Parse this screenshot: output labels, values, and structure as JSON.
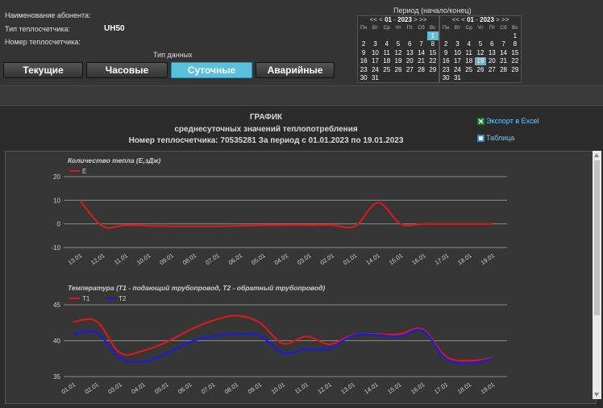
{
  "header": {
    "subscriber_label": "Наименование абонента:",
    "meter_type_label": "Тип теплосчетчика:",
    "meter_type_value": "UH50",
    "meter_number_label": "Номер теплосчетчика:",
    "data_type_label": "Тип данных"
  },
  "tabs": [
    {
      "label": "Текущие"
    },
    {
      "label": "Часовые"
    },
    {
      "label": "Суточные",
      "active": true
    },
    {
      "label": "Аварийные"
    }
  ],
  "period": {
    "label": "Период (начало/конец)",
    "calendars": [
      {
        "nav_prev": "<< <",
        "month": "01",
        "sep": "-",
        "year": "2023",
        "nav_next": "> >>",
        "selected_day": "1"
      },
      {
        "nav_prev": "<< <",
        "month": "01",
        "sep": "-",
        "year": "2023",
        "nav_next": "> >>",
        "selected_day": "19"
      }
    ],
    "weekdays": [
      "Пн",
      "Вт",
      "Ср",
      "Чт",
      "Пт",
      "Сб",
      "Вс"
    ],
    "weeks": [
      [
        "",
        "",
        "",
        "",
        "",
        "",
        "1"
      ],
      [
        "2",
        "3",
        "4",
        "5",
        "6",
        "7",
        "8"
      ],
      [
        "9",
        "10",
        "11",
        "12",
        "13",
        "14",
        "15"
      ],
      [
        "16",
        "17",
        "18",
        "19",
        "20",
        "21",
        "22"
      ],
      [
        "23",
        "24",
        "25",
        "26",
        "27",
        "28",
        "29"
      ],
      [
        "30",
        "31",
        "",
        "",
        "",
        "",
        ""
      ]
    ]
  },
  "graph": {
    "title1": "ГРАФИК",
    "title2": "среднесуточных значений теплопотребления",
    "title3": "Номер теплосчетчика: 70535281 За период с 01.01.2023 по 19.01.2023",
    "export_label": "Экспорт в Excel",
    "table_label": "Таблица"
  },
  "colors": {
    "red": "#d41b1b",
    "blue": "#1a1ae0",
    "accent": "#5bc0de"
  },
  "chart_data": [
    {
      "type": "line",
      "title": "Количество тепла (Е,зДж)",
      "categories": [
        "13.01",
        "12.01",
        "11.01",
        "10.01",
        "09.01",
        "08.01",
        "07.01",
        "06.01",
        "05.01",
        "04.01",
        "03.01",
        "02.01",
        "01.01",
        "14.01",
        "15.01",
        "16.01",
        "17.01",
        "18.01",
        "19.01"
      ],
      "ylim": [
        -10,
        20
      ],
      "yticks": [
        -10,
        0,
        10,
        20
      ],
      "grid": true,
      "legend": "top-left",
      "series": [
        {
          "name": "E",
          "color": "#d41b1b",
          "values": [
            10,
            -1,
            -0.5,
            -0.8,
            -1,
            -1,
            -1,
            -0.8,
            -0.6,
            -0.5,
            -0.5,
            -0.5,
            -1,
            9,
            0,
            0,
            0,
            0,
            0
          ]
        }
      ]
    },
    {
      "type": "line",
      "title": "Температура (T1 - подающий трубопровод, T2 - обратный трубопровод)",
      "categories": [
        "01.01",
        "02.01",
        "03.01",
        "04.01",
        "05.01",
        "06.01",
        "07.01",
        "08.01",
        "09.01",
        "10.01",
        "11.01",
        "12.01",
        "13.01",
        "14.01",
        "15.01",
        "16.01",
        "17.01",
        "18.01",
        "19.01"
      ],
      "ylim": [
        35,
        45
      ],
      "yticks": [
        35,
        40,
        45
      ],
      "grid": true,
      "legend": "top-left",
      "series": [
        {
          "name": "T1",
          "color": "#d41b1b",
          "values": [
            42.6,
            42.7,
            38.3,
            38.6,
            39.8,
            41.5,
            42.8,
            43.5,
            42.5,
            39.6,
            40.6,
            39.5,
            40.8,
            40.9,
            40.9,
            41.6,
            37.8,
            37.2,
            37.6
          ]
        },
        {
          "name": "T2",
          "color": "#1a1ae0",
          "values": [
            40.9,
            41.1,
            37.6,
            37.1,
            38.2,
            39.8,
            40.6,
            40.9,
            40.7,
            38.3,
            38.8,
            38.9,
            40.7,
            40.8,
            40.6,
            41.4,
            37.5,
            36.9,
            37.5
          ]
        }
      ]
    }
  ]
}
